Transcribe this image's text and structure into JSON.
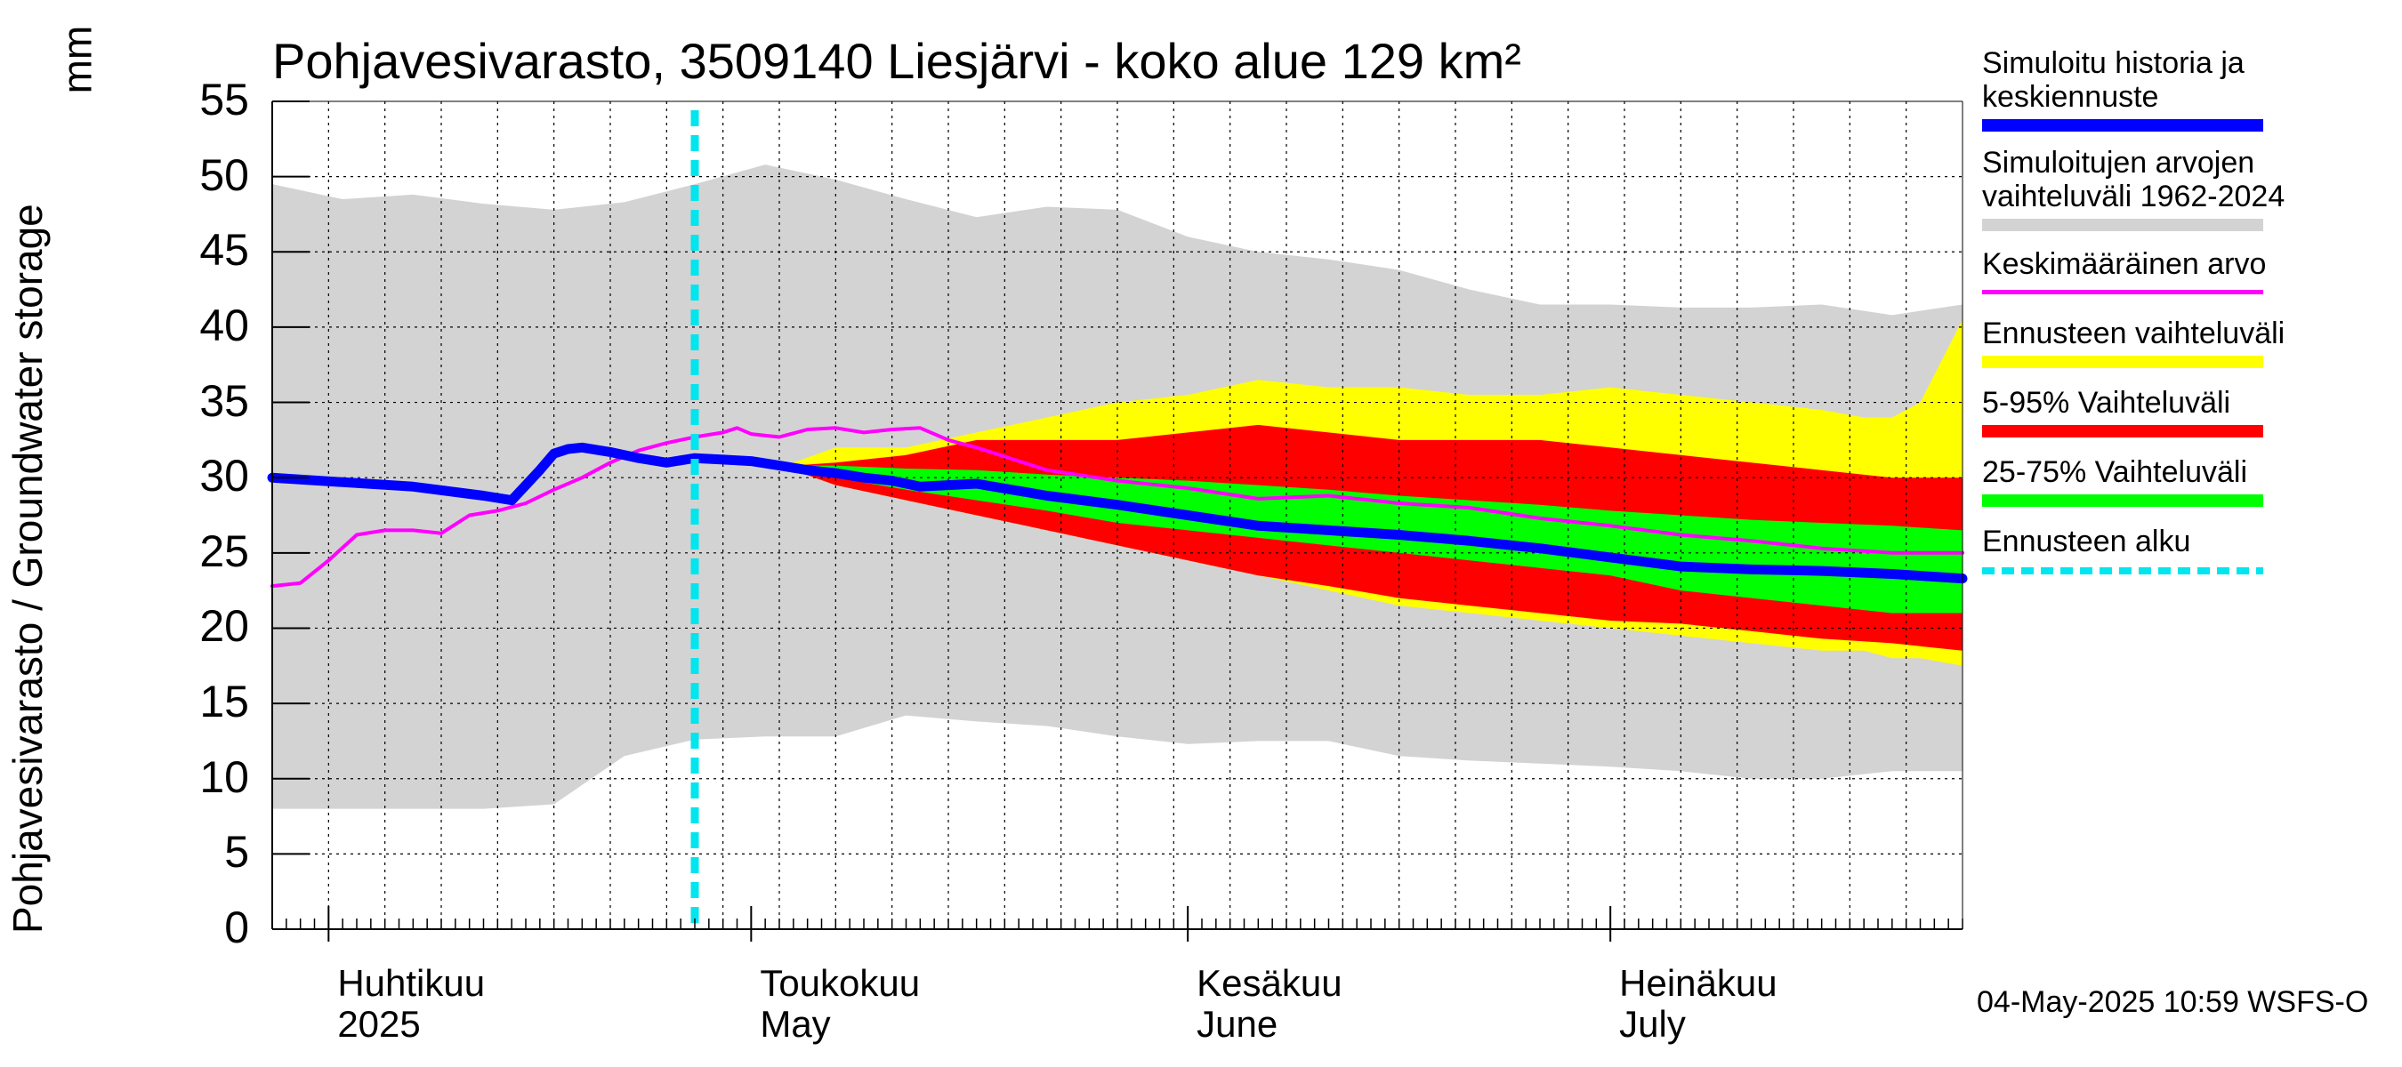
{
  "chart_data": {
    "type": "area",
    "title": "Pohjavesivarasto, 3509140 Liesjärvi - koko alue 129 km²",
    "ylabel": "Pohjavesivarasto / Groundwater storage",
    "yunit": "mm",
    "ylim": [
      0,
      55
    ],
    "yticks": [
      "0",
      "5",
      "10",
      "15",
      "20",
      "25",
      "30",
      "35",
      "40",
      "45",
      "50",
      "55"
    ],
    "xlim_days": [
      0,
      120
    ],
    "x_unit": "days since 2025-03-28",
    "month_labels": [
      {
        "fi": "Huhtikuu",
        "en": "2025",
        "day": 4
      },
      {
        "fi": "Toukokuu",
        "en": "May",
        "day": 34
      },
      {
        "fi": "Kesäkuu",
        "en": "June",
        "day": 65
      },
      {
        "fi": "Heinäkuu",
        "en": "July",
        "day": 95
      }
    ],
    "forecast_start_day": 30,
    "grid": true,
    "legend_position": "right",
    "series": [
      {
        "name": "Simuloitujen arvojen vaihteluväli 1962-2024",
        "kind": "band",
        "color": "#d3d3d3",
        "x": [
          0,
          5,
          10,
          15,
          20,
          25,
          30,
          35,
          40,
          45,
          50,
          55,
          60,
          65,
          70,
          75,
          80,
          85,
          90,
          95,
          100,
          105,
          110,
          115,
          120
        ],
        "upper": [
          49.5,
          48.5,
          48.8,
          48.2,
          47.8,
          48.3,
          49.5,
          50.8,
          49.8,
          48.5,
          47.3,
          48.0,
          47.8,
          46.0,
          45.0,
          44.5,
          43.8,
          42.5,
          41.5,
          41.5,
          41.3,
          41.3,
          41.5,
          40.8,
          41.5
        ],
        "lower": [
          8.0,
          8.0,
          8.0,
          8.0,
          8.3,
          11.5,
          12.6,
          12.8,
          12.8,
          14.2,
          13.8,
          13.5,
          12.8,
          12.3,
          12.5,
          12.5,
          11.5,
          11.2,
          11.0,
          10.8,
          10.5,
          10.0,
          10.0,
          10.5,
          10.5
        ]
      },
      {
        "name": "Ennusteen vaihteluväli",
        "kind": "band",
        "color": "#ffff00",
        "x": [
          37,
          40,
          45,
          50,
          55,
          60,
          65,
          70,
          75,
          80,
          85,
          90,
          95,
          100,
          105,
          110,
          113,
          115,
          117,
          120
        ],
        "upper": [
          31.0,
          32.0,
          32.0,
          33.0,
          34.0,
          35.0,
          35.5,
          36.5,
          36.0,
          36.0,
          35.5,
          35.5,
          36.0,
          35.5,
          35.0,
          34.5,
          34.0,
          34.0,
          35.0,
          40.5
        ],
        "lower": [
          30.5,
          29.5,
          28.5,
          27.5,
          26.5,
          25.5,
          24.5,
          23.5,
          22.5,
          21.5,
          21.0,
          20.5,
          20.0,
          19.5,
          19.0,
          18.5,
          18.5,
          18.0,
          18.0,
          17.5
        ]
      },
      {
        "name": "5-95% Vaihteluväli",
        "kind": "band",
        "color": "#ff0000",
        "x": [
          37,
          40,
          45,
          50,
          55,
          60,
          65,
          70,
          75,
          80,
          85,
          90,
          95,
          100,
          105,
          110,
          115,
          120
        ],
        "upper": [
          30.8,
          31.0,
          31.5,
          32.5,
          32.5,
          32.5,
          33.0,
          33.5,
          33.0,
          32.5,
          32.5,
          32.5,
          32.0,
          31.5,
          31.0,
          30.5,
          30.0,
          30.0
        ],
        "lower": [
          30.5,
          29.5,
          28.5,
          27.5,
          26.5,
          25.5,
          24.5,
          23.5,
          22.8,
          22.0,
          21.5,
          21.0,
          20.5,
          20.3,
          19.8,
          19.3,
          19.0,
          18.5
        ]
      },
      {
        "name": "25-75% Vaihteluväli",
        "kind": "band",
        "color": "#00ff00",
        "x": [
          37,
          40,
          45,
          50,
          55,
          60,
          65,
          70,
          75,
          80,
          85,
          90,
          95,
          100,
          105,
          110,
          115,
          120
        ],
        "upper": [
          30.8,
          30.8,
          30.6,
          30.5,
          30.2,
          30.0,
          29.8,
          29.5,
          29.2,
          28.8,
          28.5,
          28.2,
          27.8,
          27.5,
          27.2,
          27.0,
          26.8,
          26.5
        ],
        "lower": [
          30.5,
          30.0,
          29.2,
          28.5,
          27.8,
          27.0,
          26.5,
          26.0,
          25.5,
          25.0,
          24.5,
          24.0,
          23.5,
          22.5,
          22.0,
          21.5,
          21.0,
          21.0
        ]
      },
      {
        "name": "Keskimääräinen arvo",
        "kind": "line",
        "color": "#ff00ff",
        "width": 4,
        "x": [
          0,
          2,
          4,
          6,
          8,
          10,
          12,
          14,
          16,
          18,
          20,
          22,
          24,
          26,
          28,
          30,
          32,
          33,
          34,
          36,
          38,
          40,
          42,
          44,
          46,
          48,
          50,
          55,
          60,
          65,
          70,
          75,
          80,
          85,
          90,
          95,
          100,
          105,
          110,
          115,
          120
        ],
        "y": [
          22.8,
          23.0,
          24.5,
          26.2,
          26.5,
          26.5,
          26.3,
          27.5,
          27.8,
          28.3,
          29.2,
          30.0,
          31.0,
          31.8,
          32.3,
          32.7,
          33.0,
          33.3,
          32.9,
          32.7,
          33.2,
          33.3,
          33.0,
          33.2,
          33.3,
          32.5,
          32.0,
          30.5,
          29.8,
          29.3,
          28.6,
          28.8,
          28.3,
          28.0,
          27.3,
          26.8,
          26.2,
          25.8,
          25.3,
          25.0,
          25.0
        ]
      },
      {
        "name": "Simuloitu historia ja keskiennuste",
        "kind": "line",
        "color": "#0000ff",
        "width": 11,
        "x": [
          0,
          5,
          10,
          15,
          17,
          19,
          20,
          21,
          22,
          24,
          26,
          28,
          30,
          32,
          34,
          36,
          38,
          40,
          42,
          44,
          46,
          48,
          50,
          55,
          60,
          65,
          70,
          75,
          80,
          85,
          90,
          95,
          100,
          105,
          110,
          115,
          120
        ],
        "y": [
          30.0,
          29.7,
          29.4,
          28.8,
          28.5,
          30.5,
          31.6,
          31.9,
          32.0,
          31.7,
          31.3,
          31.0,
          31.3,
          31.2,
          31.1,
          30.8,
          30.5,
          30.3,
          30.0,
          29.8,
          29.4,
          29.5,
          29.6,
          28.8,
          28.2,
          27.5,
          26.8,
          26.5,
          26.2,
          25.8,
          25.3,
          24.7,
          24.1,
          23.9,
          23.8,
          23.6,
          23.3
        ]
      }
    ],
    "legend": [
      {
        "label": "Simuloitu historia ja keskiennuste",
        "color": "#0000ff",
        "style": "solid"
      },
      {
        "label": "Simuloitujen arvojen vaihteluväli 1962-2024",
        "color": "#d3d3d3",
        "style": "solid"
      },
      {
        "label": "Keskimääräinen arvo",
        "color": "#ff00ff",
        "style": "thin"
      },
      {
        "label": "Ennusteen vaihteluväli",
        "color": "#ffff00",
        "style": "solid"
      },
      {
        "label": "5-95% Vaihteluväli",
        "color": "#ff0000",
        "style": "solid"
      },
      {
        "label": "25-75% Vaihteluväli",
        "color": "#00ff00",
        "style": "solid"
      },
      {
        "label": "Ennusteen alku",
        "color": "#00e5ee",
        "style": "dotted"
      }
    ],
    "forecast_line_color": "#00e5ee"
  },
  "legend_lines": {
    "l0a": "Simuloitu historia ja",
    "l0b": "keskiennuste",
    "l1a": "Simuloitujen arvojen",
    "l1b": "vaihteluväli 1962-2024",
    "l2": "Keskimääräinen arvo",
    "l3": "Ennusteen vaihteluväli",
    "l4": "5-95% Vaihteluväli",
    "l5": "25-75% Vaihteluväli",
    "l6": "Ennusteen alku"
  },
  "footer": "04-May-2025 10:59 WSFS-O"
}
